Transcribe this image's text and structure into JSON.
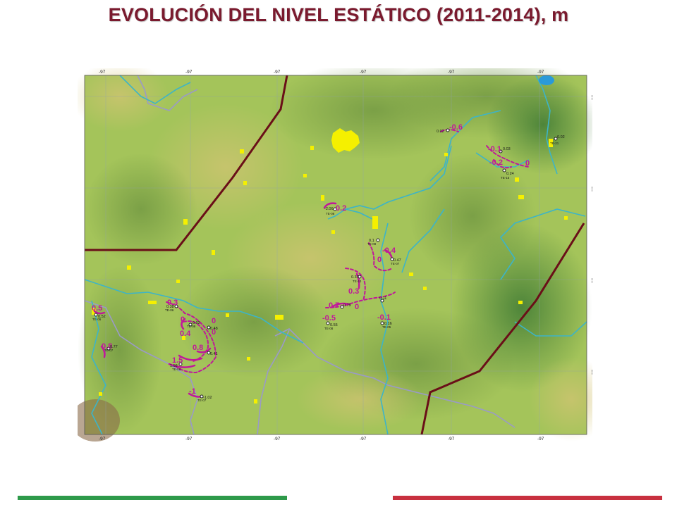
{
  "title": "EVOLUCIÓN DEL NIVEL ESTÁTICO (2011-2014), m",
  "map": {
    "top_tick_labels": [
      "-97",
      "-97",
      "-97",
      "-97",
      "-97",
      "-97"
    ],
    "bottom_tick_labels": [
      "-97",
      "-97",
      "-97",
      "-97",
      "-97",
      "-97"
    ],
    "right_tick_labels": [
      "20",
      "20",
      "20",
      "20"
    ],
    "contour_labels": [
      "-0.6",
      "-0.1",
      "-0.2",
      "0",
      "0.2",
      "-0.4",
      "0",
      "0.3",
      "0.7",
      "0",
      "-0.5",
      "-0.1",
      "0.3",
      "0",
      "0.5",
      "0",
      "0.4",
      "0",
      "0.8",
      "1.5",
      "0.8",
      "-1"
    ],
    "well_labels": [
      "0.02",
      "0.03",
      "0.24",
      "0.02",
      "-2.06",
      "0.1",
      "0.47",
      "0.37",
      "0.79",
      "0.11",
      "0.55",
      "0.16",
      "0.52",
      "0.38",
      "0.02",
      "0.48",
      "0.77",
      "0.41",
      "1.58",
      "-1.02"
    ],
    "well_ids": [
      "TE-21",
      "TE-15",
      "TE-08",
      "TE-10",
      "TE-08",
      "TE-07",
      "TE-08",
      "TE-05",
      "TE-06",
      "TE-06",
      "TE-08",
      "TE-07",
      "TE-08",
      "TE-07"
    ],
    "colors": {
      "terrain": "#a4c45a",
      "terrain_dark": "#7da246",
      "terrain_light": "#c8c870",
      "rivers": "#3cb4c8",
      "contours": "#c0189a",
      "boundaries": "#6a0f18",
      "urban": "#f5f000",
      "roads": "#9a9ac8"
    }
  },
  "footer": {
    "left_color": "#2e9a4a",
    "right_color": "#c8303f"
  }
}
